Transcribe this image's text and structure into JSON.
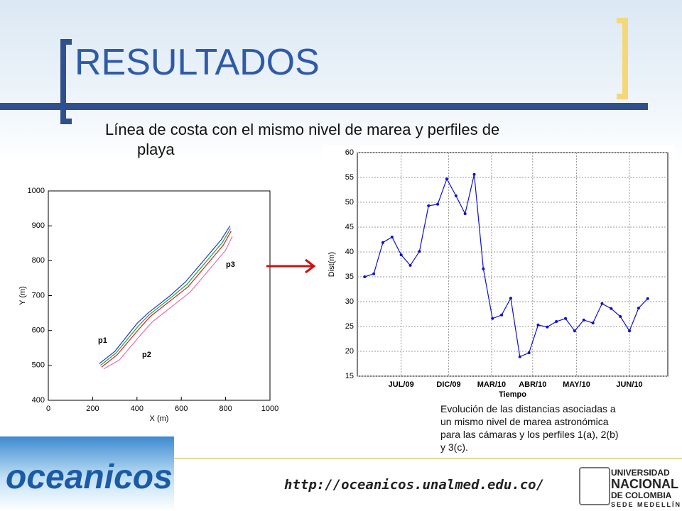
{
  "header": {
    "title": "RESULTADOS",
    "subtitle_lines": [
      "Línea de costa con el mismo nivel de marea y perfiles  de",
      "playa"
    ]
  },
  "charts": [
    {
      "type": "line",
      "xlabel": "X (m)",
      "ylabel": "Y (m)",
      "xlim": [
        0,
        1000
      ],
      "ylim": [
        400,
        1000
      ],
      "xticks": [
        0,
        200,
        400,
        600,
        800,
        1000
      ],
      "yticks": [
        400,
        500,
        600,
        700,
        800,
        900,
        1000
      ],
      "grid": false,
      "markers": false,
      "annotations": [
        "p1",
        "p2",
        "p3"
      ],
      "series": [
        {
          "color": "#1f3fbf",
          "x": [
            230,
            300,
            400,
            450,
            550,
            620,
            700,
            780,
            820
          ],
          "values": [
            505,
            540,
            620,
            650,
            700,
            740,
            800,
            860,
            900
          ]
        },
        {
          "color": "#d02020",
          "x": [
            240,
            310,
            410,
            460,
            560,
            630,
            710,
            790,
            825
          ],
          "values": [
            495,
            530,
            605,
            640,
            690,
            725,
            785,
            845,
            885
          ]
        },
        {
          "color": "#e070b0",
          "x": [
            250,
            320,
            420,
            470,
            570,
            640,
            720,
            800,
            830
          ],
          "values": [
            490,
            515,
            590,
            625,
            675,
            710,
            770,
            830,
            870
          ]
        },
        {
          "color": "#20a040",
          "x": [
            235,
            305,
            405,
            455,
            555,
            625,
            705,
            785,
            822
          ],
          "values": [
            500,
            535,
            612,
            645,
            695,
            732,
            792,
            852,
            892
          ]
        }
      ]
    },
    {
      "type": "line",
      "xlabel": "Tiempo",
      "ylabel": "Dist(m)",
      "xlim": [
        0.2,
        34.2
      ],
      "ylim": [
        15,
        60
      ],
      "xticks": [
        {
          "value": 5,
          "label": "JUL/09"
        },
        {
          "value": 10.2,
          "label": "DIC/09"
        },
        {
          "value": 14.9,
          "label": "MAR/10"
        },
        {
          "value": 19.4,
          "label": "ABR/10"
        },
        {
          "value": 24.2,
          "label": "MAY/10"
        },
        {
          "value": 30,
          "label": "JUN/10"
        }
      ],
      "yticks": [
        15,
        20,
        25,
        30,
        35,
        40,
        45,
        50,
        55,
        60
      ],
      "grid": true,
      "markers": true,
      "series": [
        {
          "color": "#1010d0",
          "x": [
            1,
            2,
            3,
            4,
            5,
            6,
            7,
            8,
            9,
            10,
            11,
            12,
            13,
            14,
            15,
            16,
            17,
            18,
            19,
            20,
            21,
            22,
            23,
            24,
            25,
            26,
            27,
            28,
            29,
            30,
            31,
            32
          ],
          "values": [
            35.0,
            35.6,
            41.9,
            43.0,
            39.4,
            37.3,
            40.1,
            49.3,
            49.6,
            54.7,
            51.3,
            47.7,
            55.6,
            36.6,
            26.6,
            27.3,
            30.7,
            18.9,
            19.7,
            25.3,
            24.9,
            26.0,
            26.6,
            24.1,
            26.3,
            25.7,
            29.6,
            28.6,
            27.0,
            24.1,
            28.7,
            30.6
          ]
        }
      ]
    }
  ],
  "caption_lines": [
    "Evolución de las distancias asociadas a",
    "un mismo nivel de marea astronómica",
    "para las cámaras y los perfiles 1(a),  2(b)",
    "y  3(c)."
  ],
  "footer": {
    "logo": "oceanicos",
    "url": "http://oceanicos.unalmed.edu.co/",
    "university": [
      "UNIVERSIDAD",
      "NACIONAL",
      "DE COLOMBIA",
      "SEDE MEDELLÍN"
    ]
  }
}
